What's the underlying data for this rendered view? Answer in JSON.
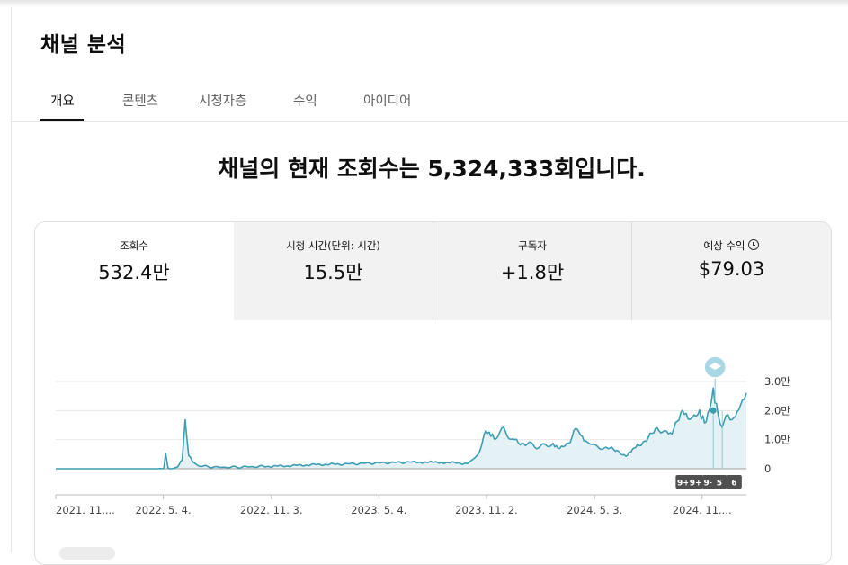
{
  "page": {
    "title": "채널 분석"
  },
  "tabs": [
    {
      "label": "개요",
      "active": true
    },
    {
      "label": "콘텐츠",
      "active": false
    },
    {
      "label": "시청자층",
      "active": false
    },
    {
      "label": "수익",
      "active": false
    },
    {
      "label": "아이디어",
      "active": false
    }
  ],
  "headline": {
    "prefix": "채널의 현재 조회수는 ",
    "count": "5,324,333",
    "suffix": "회입니다."
  },
  "metrics": [
    {
      "label": "조회수",
      "value": "532.4만",
      "selected": true
    },
    {
      "label": "시청 시간(단위: 시간)",
      "value": "15.5만",
      "selected": false
    },
    {
      "label": "구독자",
      "value": "+1.8만",
      "selected": false
    },
    {
      "label": "예상 수익",
      "value": "$79.03",
      "selected": false,
      "icon": "clock-icon"
    }
  ],
  "chart_data": {
    "type": "area",
    "y_ticks": [
      "0",
      "1.0만",
      "2.0만",
      "3.0만"
    ],
    "y_tick_values": [
      0,
      10000,
      20000,
      30000
    ],
    "ylim": [
      0,
      30000
    ],
    "x_tick_labels": [
      "2021. 11....",
      "2022. 5. 4.",
      "2022. 11. 3.",
      "2023. 5. 4.",
      "2023. 11. 2.",
      "2024. 5. 3.",
      "2024. 11...."
    ],
    "x_start": "2021-11-03",
    "x_end": "2025-01-15",
    "x_ticks": [
      "2021-11-03",
      "2022-05-04",
      "2022-11-03",
      "2023-05-04",
      "2023-11-02",
      "2024-05-03",
      "2024-11-01"
    ],
    "series": [
      {
        "points": [
          [
            "2021-11-03",
            0
          ],
          [
            "2022-03-15",
            0
          ],
          [
            "2022-04-25",
            0
          ],
          [
            "2022-05-05",
            400
          ],
          [
            "2022-05-08",
            5000
          ],
          [
            "2022-05-12",
            300
          ],
          [
            "2022-05-28",
            400
          ],
          [
            "2022-06-05",
            3000
          ],
          [
            "2022-06-10",
            15500
          ],
          [
            "2022-06-16",
            4500
          ],
          [
            "2022-06-24",
            2000
          ],
          [
            "2022-07-10",
            800
          ],
          [
            "2022-08-10",
            500
          ],
          [
            "2022-09-10",
            600
          ],
          [
            "2022-10-20",
            800
          ],
          [
            "2022-12-01",
            1000
          ],
          [
            "2023-01-15",
            1400
          ],
          [
            "2023-03-01",
            1600
          ],
          [
            "2023-05-01",
            2000
          ],
          [
            "2023-07-01",
            2300
          ],
          [
            "2023-09-01",
            2100
          ],
          [
            "2023-10-01",
            1800
          ],
          [
            "2023-10-20",
            5000
          ],
          [
            "2023-11-01",
            12500
          ],
          [
            "2023-11-15",
            11000
          ],
          [
            "2023-12-01",
            13000
          ],
          [
            "2023-12-20",
            9500
          ],
          [
            "2024-01-10",
            8500
          ],
          [
            "2024-02-01",
            7500
          ],
          [
            "2024-02-20",
            8500
          ],
          [
            "2024-03-05",
            6500
          ],
          [
            "2024-03-20",
            9000
          ],
          [
            "2024-04-01",
            14000
          ],
          [
            "2024-04-15",
            9500
          ],
          [
            "2024-05-01",
            8000
          ],
          [
            "2024-05-20",
            7000
          ],
          [
            "2024-06-10",
            6500
          ],
          [
            "2024-06-25",
            4000
          ],
          [
            "2024-07-15",
            8000
          ],
          [
            "2024-08-05",
            11000
          ],
          [
            "2024-08-20",
            14500
          ],
          [
            "2024-09-05",
            11500
          ],
          [
            "2024-09-20",
            16500
          ],
          [
            "2024-10-05",
            19500
          ],
          [
            "2024-10-15",
            17500
          ],
          [
            "2024-10-25",
            21000
          ],
          [
            "2024-11-08",
            16000
          ],
          [
            "2024-11-20",
            25000
          ],
          [
            "2024-11-28",
            18000
          ],
          [
            "2024-12-05",
            15500
          ],
          [
            "2024-12-15",
            18500
          ],
          [
            "2024-12-25",
            16500
          ],
          [
            "2025-01-05",
            20500
          ],
          [
            "2025-01-15",
            26000
          ]
        ]
      }
    ],
    "markers": [
      {
        "label": "9+",
        "date": "2024-10-01"
      },
      {
        "label": "9+",
        "date": "2024-10-22"
      },
      {
        "label": "9+",
        "date": "2024-11-15"
      },
      {
        "label": "5",
        "date": "2024-12-01"
      },
      {
        "label": "6",
        "date": "2024-12-26"
      }
    ],
    "milestone": {
      "icon": "graduation-cap-icon",
      "date": "2024-11-23",
      "value": 20000
    },
    "colors": {
      "line": "#3d9db3",
      "fill": "#e4f2f6",
      "grid": "#e7e7e7",
      "axis": "#4a4a4a"
    }
  }
}
